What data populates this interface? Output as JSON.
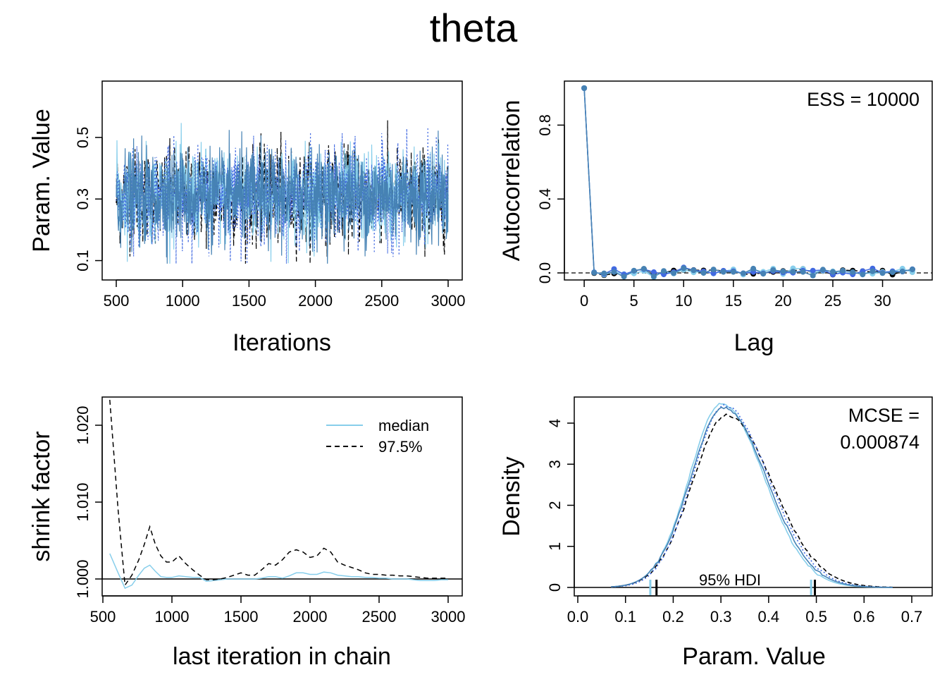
{
  "figure": {
    "title": "theta"
  },
  "colors": {
    "chain1": "#87CEEB",
    "chain2": "#000000",
    "chain3": "#4169E1",
    "chain4": "#4682B4"
  },
  "chart_data": [
    {
      "type": "line",
      "panel": "trace",
      "title": "",
      "xlabel": "Iterations",
      "ylabel": "Param. Value",
      "xlim": [
        500,
        3000
      ],
      "ylim": [
        0.06,
        0.66
      ],
      "xticks": [
        "500",
        "1000",
        "1500",
        "2000",
        "2500",
        "3000"
      ],
      "yticks": [
        "0.1",
        "0.3",
        "0.5"
      ],
      "series_summary": {
        "chains": 4,
        "center": 0.31,
        "typical_low": 0.18,
        "typical_high": 0.46,
        "min": 0.09,
        "max": 0.64
      }
    },
    {
      "type": "scatter",
      "panel": "autocorrelation",
      "title": "",
      "xlabel": "Lag",
      "ylabel": "Autocorrelation",
      "xlim": [
        -1,
        34
      ],
      "ylim": [
        -0.05,
        1.0
      ],
      "xticks": [
        "0",
        "5",
        "10",
        "15",
        "20",
        "25",
        "30"
      ],
      "yticks": [
        "0.0",
        "0.4",
        "0.8"
      ],
      "annotation": "ESS = 10000",
      "lag_values": [
        1.0,
        0.01,
        0.0,
        0.01,
        -0.01,
        0.0,
        0.01,
        -0.01,
        0.0,
        0.01,
        0.02,
        0.01,
        0.0,
        0.01,
        0.0,
        0.01,
        0.0,
        0.01,
        0.0,
        0.02,
        0.0,
        0.01,
        0.01,
        0.0,
        0.01,
        0.0,
        0.01,
        0.0,
        0.0,
        0.01,
        0.01,
        0.0,
        0.01,
        0.01
      ]
    },
    {
      "type": "line",
      "panel": "shrink",
      "title": "",
      "xlabel": "last iteration in chain",
      "ylabel": "shrink factor",
      "xlim": [
        500,
        3000
      ],
      "ylim": [
        0.9975,
        1.0235
      ],
      "xticks": [
        "500",
        "1000",
        "1500",
        "2000",
        "2500",
        "3000"
      ],
      "yticks": [
        "1.000",
        "1.010",
        "1.020"
      ],
      "legend_position": "top-right",
      "x": [
        550,
        610,
        660,
        710,
        760,
        800,
        840,
        880,
        920,
        960,
        1000,
        1050,
        1100,
        1150,
        1200,
        1250,
        1300,
        1350,
        1400,
        1450,
        1500,
        1550,
        1600,
        1650,
        1700,
        1750,
        1800,
        1850,
        1900,
        1950,
        2000,
        2050,
        2100,
        2150,
        2200,
        2250,
        2300,
        2350,
        2400,
        2450,
        2500,
        2550,
        2600,
        2650,
        2700,
        2750,
        2800,
        2850,
        2900,
        2950,
        3000
      ],
      "series": [
        {
          "name": "median",
          "values": [
            1.0033,
            1.0008,
            0.9988,
            0.9992,
            1.0005,
            1.0014,
            1.0018,
            1.001,
            1.0003,
            1.0002,
            1.0002,
            1.0004,
            1.0003,
            1.0002,
            1.0002,
            0.9997,
            0.9998,
            0.9999,
            1.0,
            1.0,
            1.0,
            1.0,
            1.0,
            1.0001,
            1.0003,
            1.0003,
            1.0001,
            1.0004,
            1.0008,
            1.0008,
            1.0006,
            1.0006,
            1.0009,
            1.0008,
            1.0005,
            1.0004,
            1.0003,
            1.0003,
            1.0002,
            1.0002,
            1.0001,
            1.0001,
            1.0,
            1.0,
            1.0,
            0.9999,
            0.9998,
            0.9998,
            0.9998,
            0.9999,
            0.9999
          ]
        },
        {
          "name": "97.5%",
          "values": [
            1.0233,
            1.009,
            0.9992,
            1.0005,
            1.0025,
            1.0045,
            1.0068,
            1.0045,
            1.003,
            1.0022,
            1.0022,
            1.003,
            1.002,
            1.0012,
            1.0005,
            0.9999,
            0.9999,
            1.0,
            1.0002,
            1.0005,
            1.0008,
            1.0005,
            1.0005,
            1.0012,
            1.002,
            1.0018,
            1.0025,
            1.0035,
            1.0038,
            1.0035,
            1.0028,
            1.003,
            1.004,
            1.0035,
            1.0022,
            1.0018,
            1.0015,
            1.0012,
            1.0008,
            1.0006,
            1.0006,
            1.0005,
            1.0005,
            1.0004,
            1.0004,
            1.0003,
            1.0002,
            1.0001,
            1.0001,
            1.0001,
            1.0001
          ]
        }
      ]
    },
    {
      "type": "line",
      "panel": "density",
      "title": "",
      "xlabel": "Param. Value",
      "ylabel": "Density",
      "xlim": [
        -0.005,
        0.735
      ],
      "ylim": [
        -0.2,
        4.7
      ],
      "xticks": [
        "0.0",
        "0.1",
        "0.2",
        "0.3",
        "0.4",
        "0.5",
        "0.6",
        "0.7"
      ],
      "yticks": [
        "0",
        "1",
        "2",
        "3",
        "4"
      ],
      "annotation": [
        "MCSE =",
        "0.000874"
      ],
      "hdi_label": "95% HDI",
      "hdi_bounds": {
        "chain1": [
          0.152,
          0.489
        ],
        "chain2": [
          0.165,
          0.497
        ]
      },
      "density_params": {
        "mode": 0.306,
        "peak": 4.47,
        "sd_left": 0.068,
        "sd_right": 0.092,
        "support": [
          0.07,
          0.66
        ]
      }
    }
  ]
}
